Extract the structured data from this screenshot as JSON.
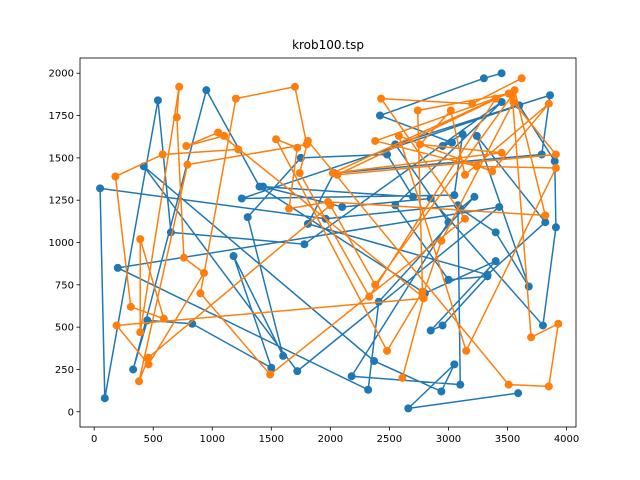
{
  "chart_data": {
    "type": "line",
    "title": "krob100.tsp",
    "xlabel": "",
    "ylabel": "",
    "xlim": [
      -120,
      4080
    ],
    "ylim": [
      -90,
      2090
    ],
    "xticks": [
      0,
      500,
      1000,
      1500,
      2000,
      2500,
      3000,
      3500,
      4000
    ],
    "yticks": [
      0,
      250,
      500,
      750,
      1000,
      1250,
      1500,
      1750,
      2000
    ],
    "grid": false,
    "legend": "none",
    "series": [
      {
        "color": "#1f77b4",
        "marker": "circle",
        "x": [
          3450,
          3300,
          2420,
          3030,
          2950,
          3120,
          3050,
          1250,
          3600,
          3900,
          3910,
          3800,
          2850,
          2100,
          1430,
          2700,
          2480,
          1750,
          1300,
          1600,
          1180,
          1500,
          830,
          450,
          330,
          950,
          1400,
          2800,
          3400,
          2850,
          2950,
          3330,
          3000,
          2550,
          3450,
          1780,
          650,
          540,
          90,
          50,
          1960,
          3080,
          3100,
          2180,
          3000,
          2550,
          3860,
          3790,
          2030,
          1810,
          3330,
          3820,
          3240,
          3680,
          3400,
          3100,
          3220,
          2410,
          2320,
          200,
          3430,
          1720,
          420,
          2370,
          2940,
          3050,
          2660,
          3590
        ],
        "y": [
          2000,
          1970,
          1750,
          1590,
          1570,
          1640,
          1280,
          1260,
          1810,
          1480,
          1090,
          510,
          1260,
          1210,
          1330,
          1270,
          1520,
          1500,
          1150,
          330,
          920,
          260,
          520,
          540,
          250,
          1900,
          1330,
          700,
          890,
          480,
          510,
          800,
          780,
          1220,
          1830,
          990,
          1060,
          1840,
          80,
          1320,
          1140,
          1220,
          160,
          210,
          1120,
          1580,
          1870,
          1520,
          1410,
          1110,
          810,
          1120,
          1630,
          740,
          1060,
          1200,
          1270,
          650,
          130,
          850,
          1210,
          240,
          1450,
          300,
          120,
          280,
          20,
          110
        ]
      },
      {
        "color": "#ff7f0e",
        "marker": "circle",
        "x": [
          3620,
          3200,
          2430,
          3140,
          1490,
          900,
          1200,
          1700,
          1800,
          790,
          380,
          460,
          2000,
          2380,
          3540,
          3700,
          3930,
          3850,
          3510,
          1810,
          1740,
          2330,
          3400,
          2020,
          3450,
          2760,
          3020,
          3140,
          3850,
          3370,
          2580,
          3150,
          3910,
          3240,
          2380,
          3510,
          2740,
          2780,
          2480,
          1540,
          1720,
          1650,
          1980,
          3820,
          3560,
          2060,
          3910,
          3550,
          2940,
          2780,
          1050,
          780,
          1100,
          1220,
          580,
          180,
          310,
          590,
          390,
          390,
          720,
          700,
          760,
          930,
          460,
          190,
          2790,
          2610
        ],
        "y": [
          1970,
          1820,
          1850,
          1140,
          220,
          700,
          1850,
          1920,
          1580,
          1460,
          180,
          320,
          1220,
          750,
          1870,
          440,
          520,
          150,
          160,
          1600,
          1410,
          680,
          1850,
          1410,
          1530,
          1580,
          1780,
          1400,
          1820,
          1420,
          1630,
          360,
          1440,
          1450,
          1600,
          1880,
          1780,
          710,
          360,
          1610,
          1560,
          1200,
          1240,
          1160,
          1900,
          1400,
          1520,
          1830,
          1010,
          680,
          1650,
          1570,
          1630,
          1550,
          1520,
          1390,
          620,
          550,
          1020,
          470,
          1920,
          1740,
          910,
          820,
          280,
          510,
          670,
          200
        ]
      }
    ]
  }
}
